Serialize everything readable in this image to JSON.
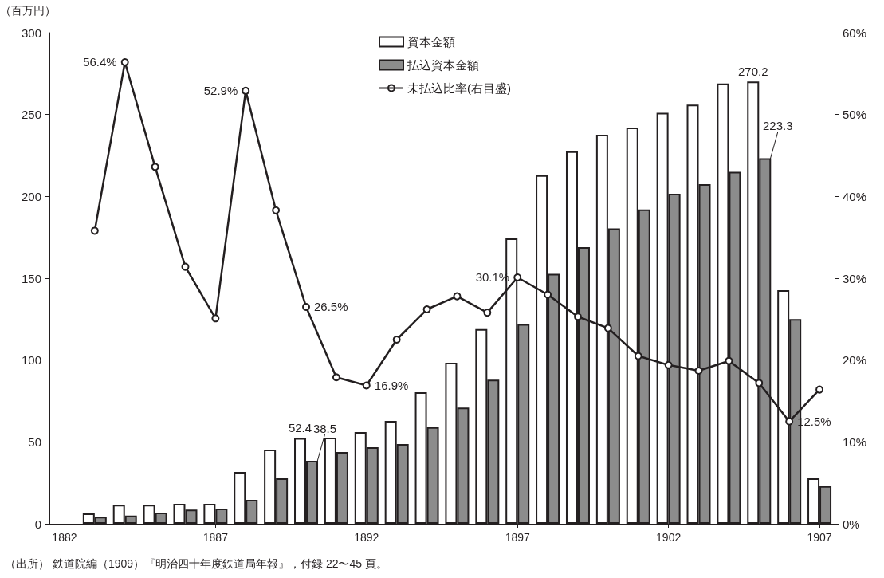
{
  "chart_data": {
    "type": "bar",
    "ylabel": "（百万円）",
    "categories": [
      "1882",
      null,
      null,
      null,
      null,
      "1887",
      null,
      null,
      null,
      null,
      "1892",
      null,
      null,
      null,
      null,
      "1897",
      null,
      null,
      null,
      null,
      "1902",
      null,
      null,
      null,
      null,
      "1907"
    ],
    "series": [
      {
        "name": "資本金額",
        "color": "#ffffff",
        "values": [
          null,
          6.3,
          11.6,
          11.6,
          12.2,
          12.2,
          31.7,
          45.3,
          52.4,
          52.6,
          56,
          62.8,
          80.4,
          98.4,
          119,
          174.4,
          213,
          227.5,
          237.7,
          242,
          251,
          256,
          269,
          270.2,
          142.7,
          27.8
        ],
        "value_labels": [
          null,
          null,
          null,
          null,
          null,
          null,
          null,
          null,
          "52.4",
          null,
          null,
          null,
          null,
          null,
          null,
          null,
          null,
          null,
          null,
          null,
          null,
          null,
          null,
          "270.2",
          null,
          null
        ]
      },
      {
        "name": "払込資本金額",
        "color": "#8c8c8c",
        "values": [
          null,
          4.3,
          5,
          6.8,
          8.7,
          9.2,
          14.6,
          27.8,
          38.5,
          43.8,
          46.8,
          48.7,
          59,
          71,
          88,
          122,
          152.7,
          169,
          180.4,
          192,
          201.6,
          207.5,
          215,
          223.3,
          125,
          23
        ],
        "value_labels": [
          null,
          null,
          null,
          null,
          null,
          null,
          null,
          null,
          "38.5",
          null,
          null,
          null,
          null,
          null,
          null,
          null,
          null,
          null,
          null,
          null,
          null,
          null,
          null,
          "223.3",
          null,
          null
        ]
      },
      {
        "name": "未払込比率(右目盛)",
        "type": "line",
        "axis": "y2",
        "color": "#231f20",
        "marker": "circle",
        "line_style": "solid",
        "values": [
          null,
          35.8,
          56.4,
          43.6,
          31.4,
          25.1,
          52.9,
          38.3,
          26.5,
          17.9,
          16.9,
          22.5,
          26.2,
          27.8,
          25.8,
          30.1,
          28,
          25.3,
          23.9,
          20.5,
          19.4,
          18.7,
          19.9,
          17.2,
          12.5,
          16.4
        ],
        "value_labels": [
          null,
          null,
          "56.4%",
          null,
          null,
          null,
          "52.9%",
          null,
          "26.5%",
          null,
          "16.9%",
          null,
          null,
          null,
          null,
          "30.1%",
          null,
          null,
          null,
          null,
          null,
          null,
          null,
          null,
          "12.5%",
          null
        ]
      }
    ],
    "ylim": [
      0,
      300
    ],
    "yticks": [
      0,
      50,
      100,
      150,
      200,
      250,
      300
    ],
    "y2lim": [
      0,
      60
    ],
    "y2ticks": [
      {
        "value": 0,
        "label": "0%"
      },
      {
        "value": 10,
        "label": "10%"
      },
      {
        "value": 20,
        "label": "20%"
      },
      {
        "value": 30,
        "label": "30%"
      },
      {
        "value": 40,
        "label": "40%"
      },
      {
        "value": 50,
        "label": "50%"
      },
      {
        "value": 60,
        "label": "60%"
      }
    ],
    "grid": false,
    "legend": "top",
    "annotations": [
      "（出所） 鉄道院編（1909）『明治四十年度鉄道局年報』，付録 22〜45 頁。"
    ]
  }
}
